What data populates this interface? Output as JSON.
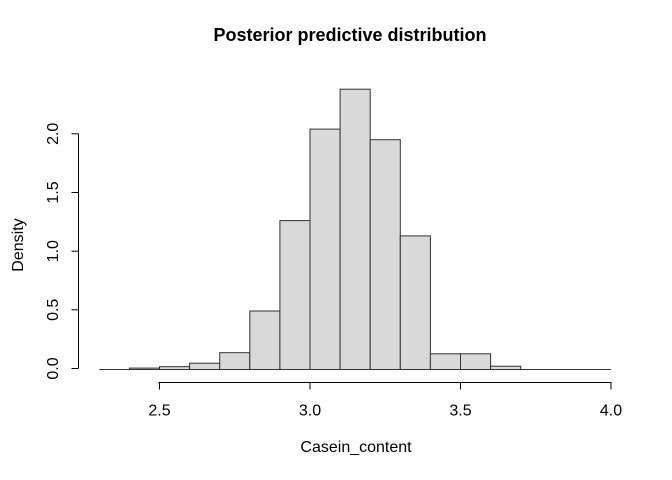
{
  "chart_data": {
    "type": "bar",
    "subtype": "histogram",
    "title": "Posterior predictive distribution",
    "xlabel": "Casein_content",
    "ylabel": "Density",
    "xlim": [
      2.3,
      4.0
    ],
    "ylim": [
      0,
      2.38
    ],
    "grid": false,
    "legend": false,
    "bin_width": 0.1,
    "x_ticks": [
      {
        "value": 2.5,
        "label": "2.5"
      },
      {
        "value": 3.0,
        "label": "3.0"
      },
      {
        "value": 3.5,
        "label": "3.5"
      },
      {
        "value": 4.0,
        "label": "4.0"
      }
    ],
    "y_ticks": [
      {
        "value": 0.0,
        "label": "0.0"
      },
      {
        "value": 0.5,
        "label": "0.5"
      },
      {
        "value": 1.0,
        "label": "1.0"
      },
      {
        "value": 1.5,
        "label": "1.5"
      },
      {
        "value": 2.0,
        "label": "2.0"
      }
    ],
    "bins": [
      {
        "start": 2.3,
        "end": 2.4,
        "density": 0.0
      },
      {
        "start": 2.4,
        "end": 2.5,
        "density": 0.003
      },
      {
        "start": 2.5,
        "end": 2.6,
        "density": 0.015
      },
      {
        "start": 2.6,
        "end": 2.7,
        "density": 0.045
      },
      {
        "start": 2.7,
        "end": 2.8,
        "density": 0.135
      },
      {
        "start": 2.8,
        "end": 2.9,
        "density": 0.49
      },
      {
        "start": 2.9,
        "end": 3.0,
        "density": 1.26
      },
      {
        "start": 3.0,
        "end": 3.1,
        "density": 2.04
      },
      {
        "start": 3.1,
        "end": 3.2,
        "density": 2.38
      },
      {
        "start": 3.2,
        "end": 3.3,
        "density": 1.95
      },
      {
        "start": 3.3,
        "end": 3.4,
        "density": 1.13
      },
      {
        "start": 3.4,
        "end": 3.5,
        "density": 0.125
      },
      {
        "start": 3.5,
        "end": 3.6,
        "density": 0.125
      },
      {
        "start": 3.6,
        "end": 3.7,
        "density": 0.02
      },
      {
        "start": 3.7,
        "end": 3.8,
        "density": 0.0
      },
      {
        "start": 3.8,
        "end": 3.9,
        "density": 0.0
      },
      {
        "start": 3.9,
        "end": 4.0,
        "density": 0.0
      }
    ],
    "colors": {
      "bar_fill": "#d9d9d9",
      "bar_stroke": "#333333",
      "axis": "#000000",
      "text": "#000000",
      "background": "#ffffff"
    }
  }
}
